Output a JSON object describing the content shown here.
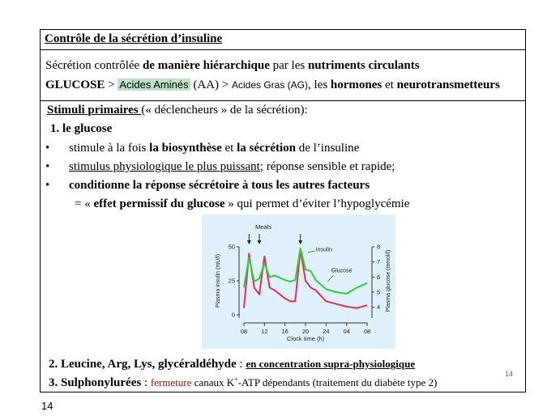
{
  "title": "Contrôle de la sécrétion d’insuline",
  "intro": {
    "p1_a": "Sécrétion contrôlée ",
    "p1_b": "de manière hiérarchique",
    "p1_c": " par les ",
    "p1_d": "nutriments circulants",
    "p2_a": "GLUCOSE",
    "p2_b": " > ",
    "p2_c": "Acides Aminés",
    "p2_d": " (AA) > ",
    "p2_e": "Acides Gras (AG)",
    "p2_f": ", les ",
    "p2_g": "hormones",
    "p2_h": " et ",
    "p2_i": "neurotransmetteurs"
  },
  "stimuli": {
    "heading_u": "Stimuli primaires ",
    "heading_rest": "(« déclencheurs » de la sécrétion):",
    "item1": "1. le glucose",
    "bullets": [
      {
        "a": "stimule à la fois ",
        "b": "la biosynthèse",
        "c": " et ",
        "d": "la sécrétion",
        "e": " de l’insuline"
      },
      {
        "a": "stimulus physiologique le plus puissant",
        "b": "; réponse sensible et rapide;"
      },
      {
        "a": "conditionne la réponse sécrétoire à tous les autres facteurs"
      }
    ],
    "permissive_a": "= « ",
    "permissive_b": "effet permissif du glucose",
    "permissive_c": " » qui permet d’éviter l’hypoglycémie",
    "item2_a": "2. Leucine, Arg, Lys, glycéraldéhyde",
    "item2_b": " : ",
    "item2_c": "en concentration supra-physiologique",
    "item3_a": "3. Sulphonylurées",
    "item3_b": " : ",
    "item3_c": "fermeture",
    "item3_d": " canaux K",
    "item3_sup": "+",
    "item3_e": "-ATP dépendants (traitement du diabète type 2)"
  },
  "page_inner": "14",
  "page_outer": "14",
  "chart_data": {
    "type": "line",
    "title": "Meals",
    "xlabel": "Clock time (h)",
    "ylabel_left": "Plasma insulin (mU/l)",
    "ylabel_right": "Plasma glucose (mmol/l)",
    "x_ticks": [
      "08",
      "12",
      "16",
      "20",
      "24",
      "04",
      "08"
    ],
    "y_left_ticks": [
      0,
      25,
      50
    ],
    "y_right_ticks": [
      4,
      5,
      6,
      7,
      8
    ],
    "y_left_range": [
      0,
      50
    ],
    "y_right_range": [
      3.5,
      8
    ],
    "meal_times": [
      9,
      11,
      19
    ],
    "series": [
      {
        "name": "Insulin",
        "color": "#e0305a",
        "axis": "left",
        "x": [
          8,
          9,
          10,
          11,
          12,
          13,
          14,
          16,
          17,
          18,
          19,
          20,
          21,
          22,
          24,
          26,
          28,
          30,
          32
        ],
        "y": [
          5,
          45,
          20,
          15,
          43,
          20,
          18,
          12,
          10,
          10,
          48,
          25,
          20,
          18,
          10,
          8,
          6,
          5,
          7
        ]
      },
      {
        "name": "Glucose",
        "color": "#2ecc40",
        "axis": "right",
        "x": [
          8,
          9,
          10,
          11,
          12,
          13,
          14,
          16,
          17,
          18,
          19,
          20,
          21,
          22,
          24,
          26,
          28,
          30,
          32
        ],
        "y": [
          5.3,
          7.3,
          5.7,
          5.9,
          6.9,
          6.0,
          6.1,
          5.8,
          5.7,
          5.8,
          7.9,
          6.5,
          6.4,
          5.8,
          5.2,
          5.0,
          4.9,
          5.3,
          5.6
        ]
      }
    ]
  }
}
